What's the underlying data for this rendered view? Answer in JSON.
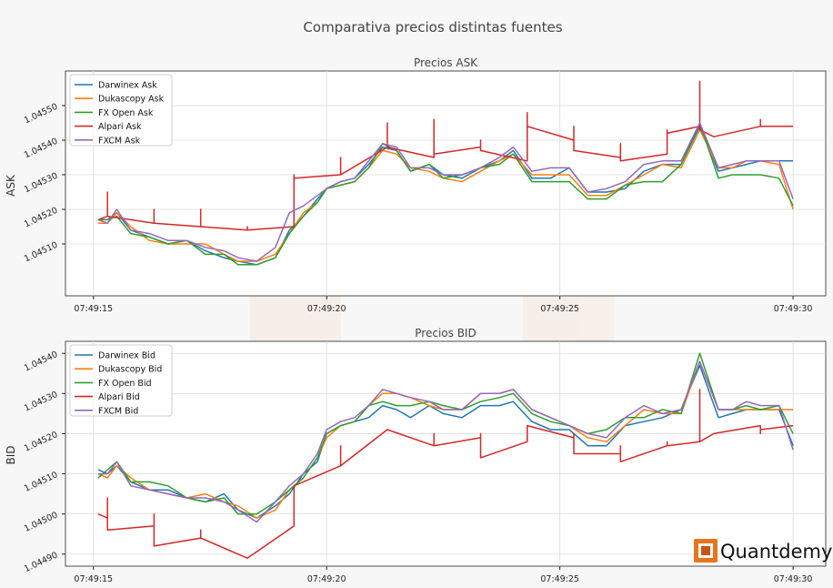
{
  "figure": {
    "title": "Comparativa precios distintas fuentes",
    "brand": "Quantdemy",
    "brand_color": "#e8741c"
  },
  "chart_data": [
    {
      "type": "line",
      "title": "Precios ASK",
      "xlabel": "",
      "ylabel": "ASK",
      "x_ticks": [
        "07:49:15",
        "07:49:20",
        "07:49:25",
        "07:49:30"
      ],
      "xlim": [
        -0.6,
        15.7
      ],
      "y_ticks": [
        "1.04510",
        "1.04520",
        "1.04530",
        "1.04540",
        "1.04550"
      ],
      "ylim": [
        1.04495,
        1.0456
      ],
      "grid": true,
      "legend_position": "top-left",
      "series": [
        {
          "name": "Darwinex Ask",
          "color": "#1f77b4",
          "x": [
            0.1,
            0.3,
            0.5,
            0.8,
            1.2,
            1.6,
            2.0,
            2.4,
            2.8,
            3.1,
            3.5,
            3.9,
            4.2,
            4.5,
            4.8,
            5.0,
            5.3,
            5.6,
            5.9,
            6.2,
            6.5,
            6.8,
            7.2,
            7.5,
            7.9,
            8.3,
            8.7,
            9.0,
            9.4,
            9.8,
            10.2,
            10.6,
            11.0,
            11.4,
            11.8,
            12.2,
            12.6,
            13.0,
            13.4,
            13.7,
            14.0,
            14.3,
            14.7,
            15.0
          ],
          "y": [
            1.04517,
            1.04517,
            1.04519,
            1.04514,
            1.04512,
            1.0451,
            1.04511,
            1.04508,
            1.04506,
            1.04505,
            1.04504,
            1.04506,
            1.04514,
            1.04518,
            1.04523,
            1.04526,
            1.04528,
            1.04529,
            1.04533,
            1.04538,
            1.04537,
            1.04531,
            1.04533,
            1.0453,
            1.04529,
            1.04532,
            1.04534,
            1.04537,
            1.04529,
            1.04529,
            1.04532,
            1.04525,
            1.04525,
            1.04526,
            1.04531,
            1.04533,
            1.04533,
            1.04544,
            1.04531,
            1.04532,
            1.04533,
            1.04534,
            1.04534,
            1.04534
          ]
        },
        {
          "name": "Dukascopy Ask",
          "color": "#ff7f0e",
          "x": [
            0.1,
            0.3,
            0.5,
            0.8,
            1.2,
            1.6,
            2.0,
            2.4,
            2.8,
            3.1,
            3.5,
            3.9,
            4.2,
            4.5,
            4.8,
            5.0,
            5.3,
            5.6,
            5.9,
            6.2,
            6.5,
            6.8,
            7.2,
            7.5,
            7.9,
            8.3,
            8.7,
            9.0,
            9.4,
            9.8,
            10.2,
            10.6,
            11.0,
            11.4,
            11.8,
            12.2,
            12.6,
            13.0,
            13.4,
            13.7,
            14.0,
            14.3,
            14.7,
            15.0
          ],
          "y": [
            1.04516,
            1.04516,
            1.04519,
            1.04515,
            1.04511,
            1.0451,
            1.0451,
            1.0451,
            1.04507,
            1.04505,
            1.04505,
            1.04507,
            1.04513,
            1.04519,
            1.04522,
            1.04526,
            1.04527,
            1.04528,
            1.04532,
            1.04537,
            1.04536,
            1.04532,
            1.04531,
            1.04529,
            1.04528,
            1.04531,
            1.04534,
            1.04536,
            1.0453,
            1.0453,
            1.0453,
            1.04524,
            1.04524,
            1.04527,
            1.0453,
            1.04533,
            1.04532,
            1.04543,
            1.04532,
            1.04532,
            1.04534,
            1.04534,
            1.04533,
            1.0452
          ]
        },
        {
          "name": "FX Open Ask",
          "color": "#2ca02c",
          "x": [
            0.1,
            0.3,
            0.5,
            0.8,
            1.2,
            1.6,
            2.0,
            2.4,
            2.8,
            3.1,
            3.5,
            3.9,
            4.2,
            4.5,
            4.8,
            5.0,
            5.3,
            5.6,
            5.9,
            6.2,
            6.5,
            6.8,
            7.2,
            7.5,
            7.9,
            8.3,
            8.7,
            9.0,
            9.4,
            9.8,
            10.2,
            10.6,
            11.0,
            11.4,
            11.8,
            12.2,
            12.6,
            13.0,
            13.4,
            13.7,
            14.0,
            14.3,
            14.7,
            15.0
          ],
          "y": [
            1.04517,
            1.04517,
            1.04518,
            1.04513,
            1.04512,
            1.0451,
            1.04511,
            1.04507,
            1.04507,
            1.04504,
            1.04504,
            1.04506,
            1.04513,
            1.04518,
            1.04522,
            1.04526,
            1.04527,
            1.04528,
            1.04532,
            1.04539,
            1.04537,
            1.04531,
            1.04533,
            1.04529,
            1.0453,
            1.04532,
            1.04533,
            1.04536,
            1.04528,
            1.04528,
            1.04528,
            1.04523,
            1.04523,
            1.04527,
            1.04528,
            1.04528,
            1.04533,
            1.04545,
            1.04529,
            1.0453,
            1.0453,
            1.0453,
            1.04529,
            1.04521
          ]
        },
        {
          "name": "Alpari Ask",
          "color": "#d62728",
          "x": [
            0.1,
            0.3,
            0.3,
            0.3,
            1.3,
            1.3,
            1.3,
            2.3,
            2.3,
            2.3,
            3.3,
            3.3,
            3.3,
            4.3,
            4.3,
            4.3,
            5.3,
            5.3,
            5.3,
            6.3,
            6.3,
            6.3,
            7.3,
            7.3,
            7.3,
            8.3,
            8.3,
            8.3,
            9.3,
            9.3,
            9.3,
            10.3,
            10.3,
            10.3,
            11.3,
            11.3,
            11.3,
            12.3,
            12.3,
            12.3,
            13.0,
            13.0,
            13.0,
            13.3,
            14.3,
            14.3,
            14.3,
            15.0
          ],
          "y": [
            1.04517,
            1.04518,
            1.04525,
            1.04518,
            1.04516,
            1.0452,
            1.04516,
            1.04515,
            1.0452,
            1.04515,
            1.04514,
            1.04515,
            1.04514,
            1.04515,
            1.0453,
            1.04529,
            1.0453,
            1.04535,
            1.0453,
            1.04538,
            1.04545,
            1.04538,
            1.04535,
            1.04546,
            1.04536,
            1.04538,
            1.0454,
            1.04537,
            1.04534,
            1.04548,
            1.04544,
            1.0454,
            1.04544,
            1.04537,
            1.04535,
            1.04539,
            1.04534,
            1.04536,
            1.04543,
            1.04542,
            1.04544,
            1.04557,
            1.04543,
            1.04541,
            1.04544,
            1.04546,
            1.04544,
            1.04544
          ]
        },
        {
          "name": "FXCM Ask",
          "color": "#9467bd",
          "x": [
            0.1,
            0.3,
            0.5,
            0.8,
            1.2,
            1.6,
            2.0,
            2.4,
            2.8,
            3.1,
            3.5,
            3.9,
            4.2,
            4.5,
            4.8,
            5.0,
            5.3,
            5.6,
            5.9,
            6.2,
            6.5,
            6.8,
            7.2,
            7.5,
            7.9,
            8.3,
            8.7,
            9.0,
            9.4,
            9.8,
            10.2,
            10.6,
            11.0,
            11.4,
            11.8,
            12.2,
            12.6,
            13.0,
            13.4,
            13.7,
            14.0,
            14.3,
            14.7,
            15.0
          ],
          "y": [
            1.04517,
            1.04516,
            1.0452,
            1.04514,
            1.04513,
            1.04511,
            1.04511,
            1.04509,
            1.04508,
            1.04506,
            1.04505,
            1.04509,
            1.04519,
            1.04521,
            1.04524,
            1.04526,
            1.04528,
            1.04529,
            1.04534,
            1.04539,
            1.04538,
            1.04532,
            1.04532,
            1.0453,
            1.0453,
            1.04532,
            1.04535,
            1.04538,
            1.04531,
            1.04532,
            1.04532,
            1.04525,
            1.04526,
            1.04528,
            1.04533,
            1.04534,
            1.04534,
            1.04545,
            1.04532,
            1.04533,
            1.04534,
            1.04534,
            1.04534,
            1.04523
          ]
        }
      ]
    },
    {
      "type": "line",
      "title": "Precios BID",
      "xlabel": "",
      "ylabel": "BID",
      "x_ticks": [
        "07:49:15",
        "07:49:20",
        "07:49:25",
        "07:49:30"
      ],
      "xlim": [
        -0.6,
        15.7
      ],
      "y_ticks": [
        "1.04490",
        "1.04500",
        "1.04510",
        "1.04520",
        "1.04530",
        "1.04540"
      ],
      "ylim": [
        1.04487,
        1.04543
      ],
      "grid": true,
      "legend_position": "top-left",
      "series": [
        {
          "name": "Darwinex Bid",
          "color": "#1f77b4",
          "x": [
            0.1,
            0.3,
            0.5,
            0.8,
            1.2,
            1.6,
            2.0,
            2.4,
            2.8,
            3.1,
            3.5,
            3.9,
            4.2,
            4.5,
            4.8,
            5.0,
            5.3,
            5.6,
            5.9,
            6.2,
            6.5,
            6.8,
            7.2,
            7.5,
            7.9,
            8.3,
            8.7,
            9.0,
            9.4,
            9.8,
            10.2,
            10.6,
            11.0,
            11.4,
            11.8,
            12.2,
            12.6,
            13.0,
            13.4,
            13.7,
            14.0,
            14.3,
            14.7,
            15.0
          ],
          "y": [
            1.04511,
            1.0451,
            1.04512,
            1.04508,
            1.04506,
            1.04506,
            1.04504,
            1.04503,
            1.04505,
            1.04501,
            1.04499,
            1.04502,
            1.04505,
            1.0451,
            1.04513,
            1.0452,
            1.04522,
            1.04523,
            1.04524,
            1.04527,
            1.04526,
            1.04524,
            1.04527,
            1.04525,
            1.04524,
            1.04527,
            1.04527,
            1.04528,
            1.04523,
            1.04521,
            1.04521,
            1.04517,
            1.04517,
            1.04522,
            1.04523,
            1.04524,
            1.04526,
            1.04537,
            1.04524,
            1.04525,
            1.04526,
            1.04526,
            1.04526,
            1.04517
          ]
        },
        {
          "name": "Dukascopy Bid",
          "color": "#ff7f0e",
          "x": [
            0.1,
            0.3,
            0.5,
            0.8,
            1.2,
            1.6,
            2.0,
            2.4,
            2.8,
            3.1,
            3.5,
            3.9,
            4.2,
            4.5,
            4.8,
            5.0,
            5.3,
            5.6,
            5.9,
            6.2,
            6.5,
            6.8,
            7.2,
            7.5,
            7.9,
            8.3,
            8.7,
            9.0,
            9.4,
            9.8,
            10.2,
            10.6,
            11.0,
            11.4,
            11.8,
            12.2,
            12.6,
            13.0,
            13.4,
            13.7,
            14.0,
            14.3,
            14.7,
            15.0
          ],
          "y": [
            1.0451,
            1.04509,
            1.04512,
            1.04509,
            1.04506,
            1.04505,
            1.04504,
            1.04505,
            1.04503,
            1.04502,
            1.04499,
            1.04501,
            1.04506,
            1.04509,
            1.04514,
            1.04519,
            1.04522,
            1.04523,
            1.04527,
            1.0453,
            1.0453,
            1.04529,
            1.04527,
            1.04526,
            1.04526,
            1.0453,
            1.0453,
            1.04531,
            1.04526,
            1.04524,
            1.04522,
            1.04519,
            1.04518,
            1.04522,
            1.04526,
            1.04525,
            1.04525,
            1.04538,
            1.04526,
            1.04526,
            1.04526,
            1.04526,
            1.04526,
            1.04526
          ]
        },
        {
          "name": "FX Open Bid",
          "color": "#2ca02c",
          "x": [
            0.1,
            0.3,
            0.5,
            0.8,
            1.2,
            1.6,
            2.0,
            2.4,
            2.8,
            3.1,
            3.5,
            3.9,
            4.2,
            4.5,
            4.8,
            5.0,
            5.3,
            5.6,
            5.9,
            6.2,
            6.5,
            6.8,
            7.2,
            7.5,
            7.9,
            8.3,
            8.7,
            9.0,
            9.4,
            9.8,
            10.2,
            10.6,
            11.0,
            11.4,
            11.8,
            12.2,
            12.6,
            13.0,
            13.4,
            13.7,
            14.0,
            14.3,
            14.7,
            15.0
          ],
          "y": [
            1.04509,
            1.04511,
            1.04513,
            1.04508,
            1.04508,
            1.04507,
            1.04504,
            1.04503,
            1.04504,
            1.045,
            1.045,
            1.04503,
            1.04506,
            1.04509,
            1.04514,
            1.0452,
            1.04522,
            1.04523,
            1.04527,
            1.04528,
            1.04527,
            1.04527,
            1.04528,
            1.04527,
            1.04526,
            1.04528,
            1.04529,
            1.0453,
            1.04525,
            1.04523,
            1.04522,
            1.0452,
            1.04521,
            1.04524,
            1.04524,
            1.04526,
            1.04525,
            1.0454,
            1.04526,
            1.04526,
            1.04527,
            1.04526,
            1.04527,
            1.0452
          ]
        },
        {
          "name": "Alpari Bid",
          "color": "#d62728",
          "x": [
            0.1,
            0.3,
            0.3,
            0.3,
            1.3,
            1.3,
            1.3,
            2.3,
            2.3,
            2.3,
            3.3,
            3.3,
            3.3,
            4.3,
            4.3,
            4.3,
            5.3,
            5.3,
            5.3,
            6.3,
            6.3,
            6.3,
            7.3,
            7.3,
            7.3,
            8.3,
            8.3,
            8.3,
            9.3,
            9.3,
            9.3,
            10.3,
            10.3,
            10.3,
            11.3,
            11.3,
            11.3,
            12.3,
            12.3,
            12.3,
            13.0,
            13.0,
            13.0,
            13.3,
            14.3,
            14.3,
            14.3,
            15.0
          ],
          "y": [
            1.045,
            1.04499,
            1.04504,
            1.04496,
            1.04497,
            1.045,
            1.04492,
            1.04494,
            1.04496,
            1.04494,
            1.04489,
            1.04489,
            1.04489,
            1.04497,
            1.04507,
            1.04507,
            1.04512,
            1.04517,
            1.04512,
            1.04521,
            1.04521,
            1.04521,
            1.04517,
            1.0452,
            1.04517,
            1.04519,
            1.0452,
            1.04514,
            1.04518,
            1.04519,
            1.04522,
            1.04519,
            1.0452,
            1.04515,
            1.04515,
            1.04517,
            1.04513,
            1.04517,
            1.04518,
            1.04517,
            1.04518,
            1.04531,
            1.04518,
            1.0452,
            1.04522,
            1.0452,
            1.04521,
            1.04522
          ]
        },
        {
          "name": "FXCM Bid",
          "color": "#9467bd",
          "x": [
            0.1,
            0.3,
            0.5,
            0.8,
            1.2,
            1.6,
            2.0,
            2.4,
            2.8,
            3.1,
            3.5,
            3.9,
            4.2,
            4.5,
            4.8,
            5.0,
            5.3,
            5.6,
            5.9,
            6.2,
            6.5,
            6.8,
            7.2,
            7.5,
            7.9,
            8.3,
            8.7,
            9.0,
            9.4,
            9.8,
            10.2,
            10.6,
            11.0,
            11.4,
            11.8,
            12.2,
            12.6,
            13.0,
            13.4,
            13.7,
            14.0,
            14.3,
            14.7,
            15.0
          ],
          "y": [
            1.0451,
            1.0451,
            1.04513,
            1.04507,
            1.04506,
            1.04505,
            1.04504,
            1.04504,
            1.04503,
            1.04501,
            1.04498,
            1.04503,
            1.04507,
            1.0451,
            1.04515,
            1.04521,
            1.04523,
            1.04524,
            1.04527,
            1.04531,
            1.0453,
            1.04529,
            1.04528,
            1.04526,
            1.04526,
            1.0453,
            1.0453,
            1.04531,
            1.04526,
            1.04524,
            1.04522,
            1.0452,
            1.04519,
            1.04524,
            1.04527,
            1.04525,
            1.04526,
            1.04538,
            1.04526,
            1.04526,
            1.04528,
            1.04527,
            1.04527,
            1.04516
          ]
        }
      ]
    }
  ]
}
